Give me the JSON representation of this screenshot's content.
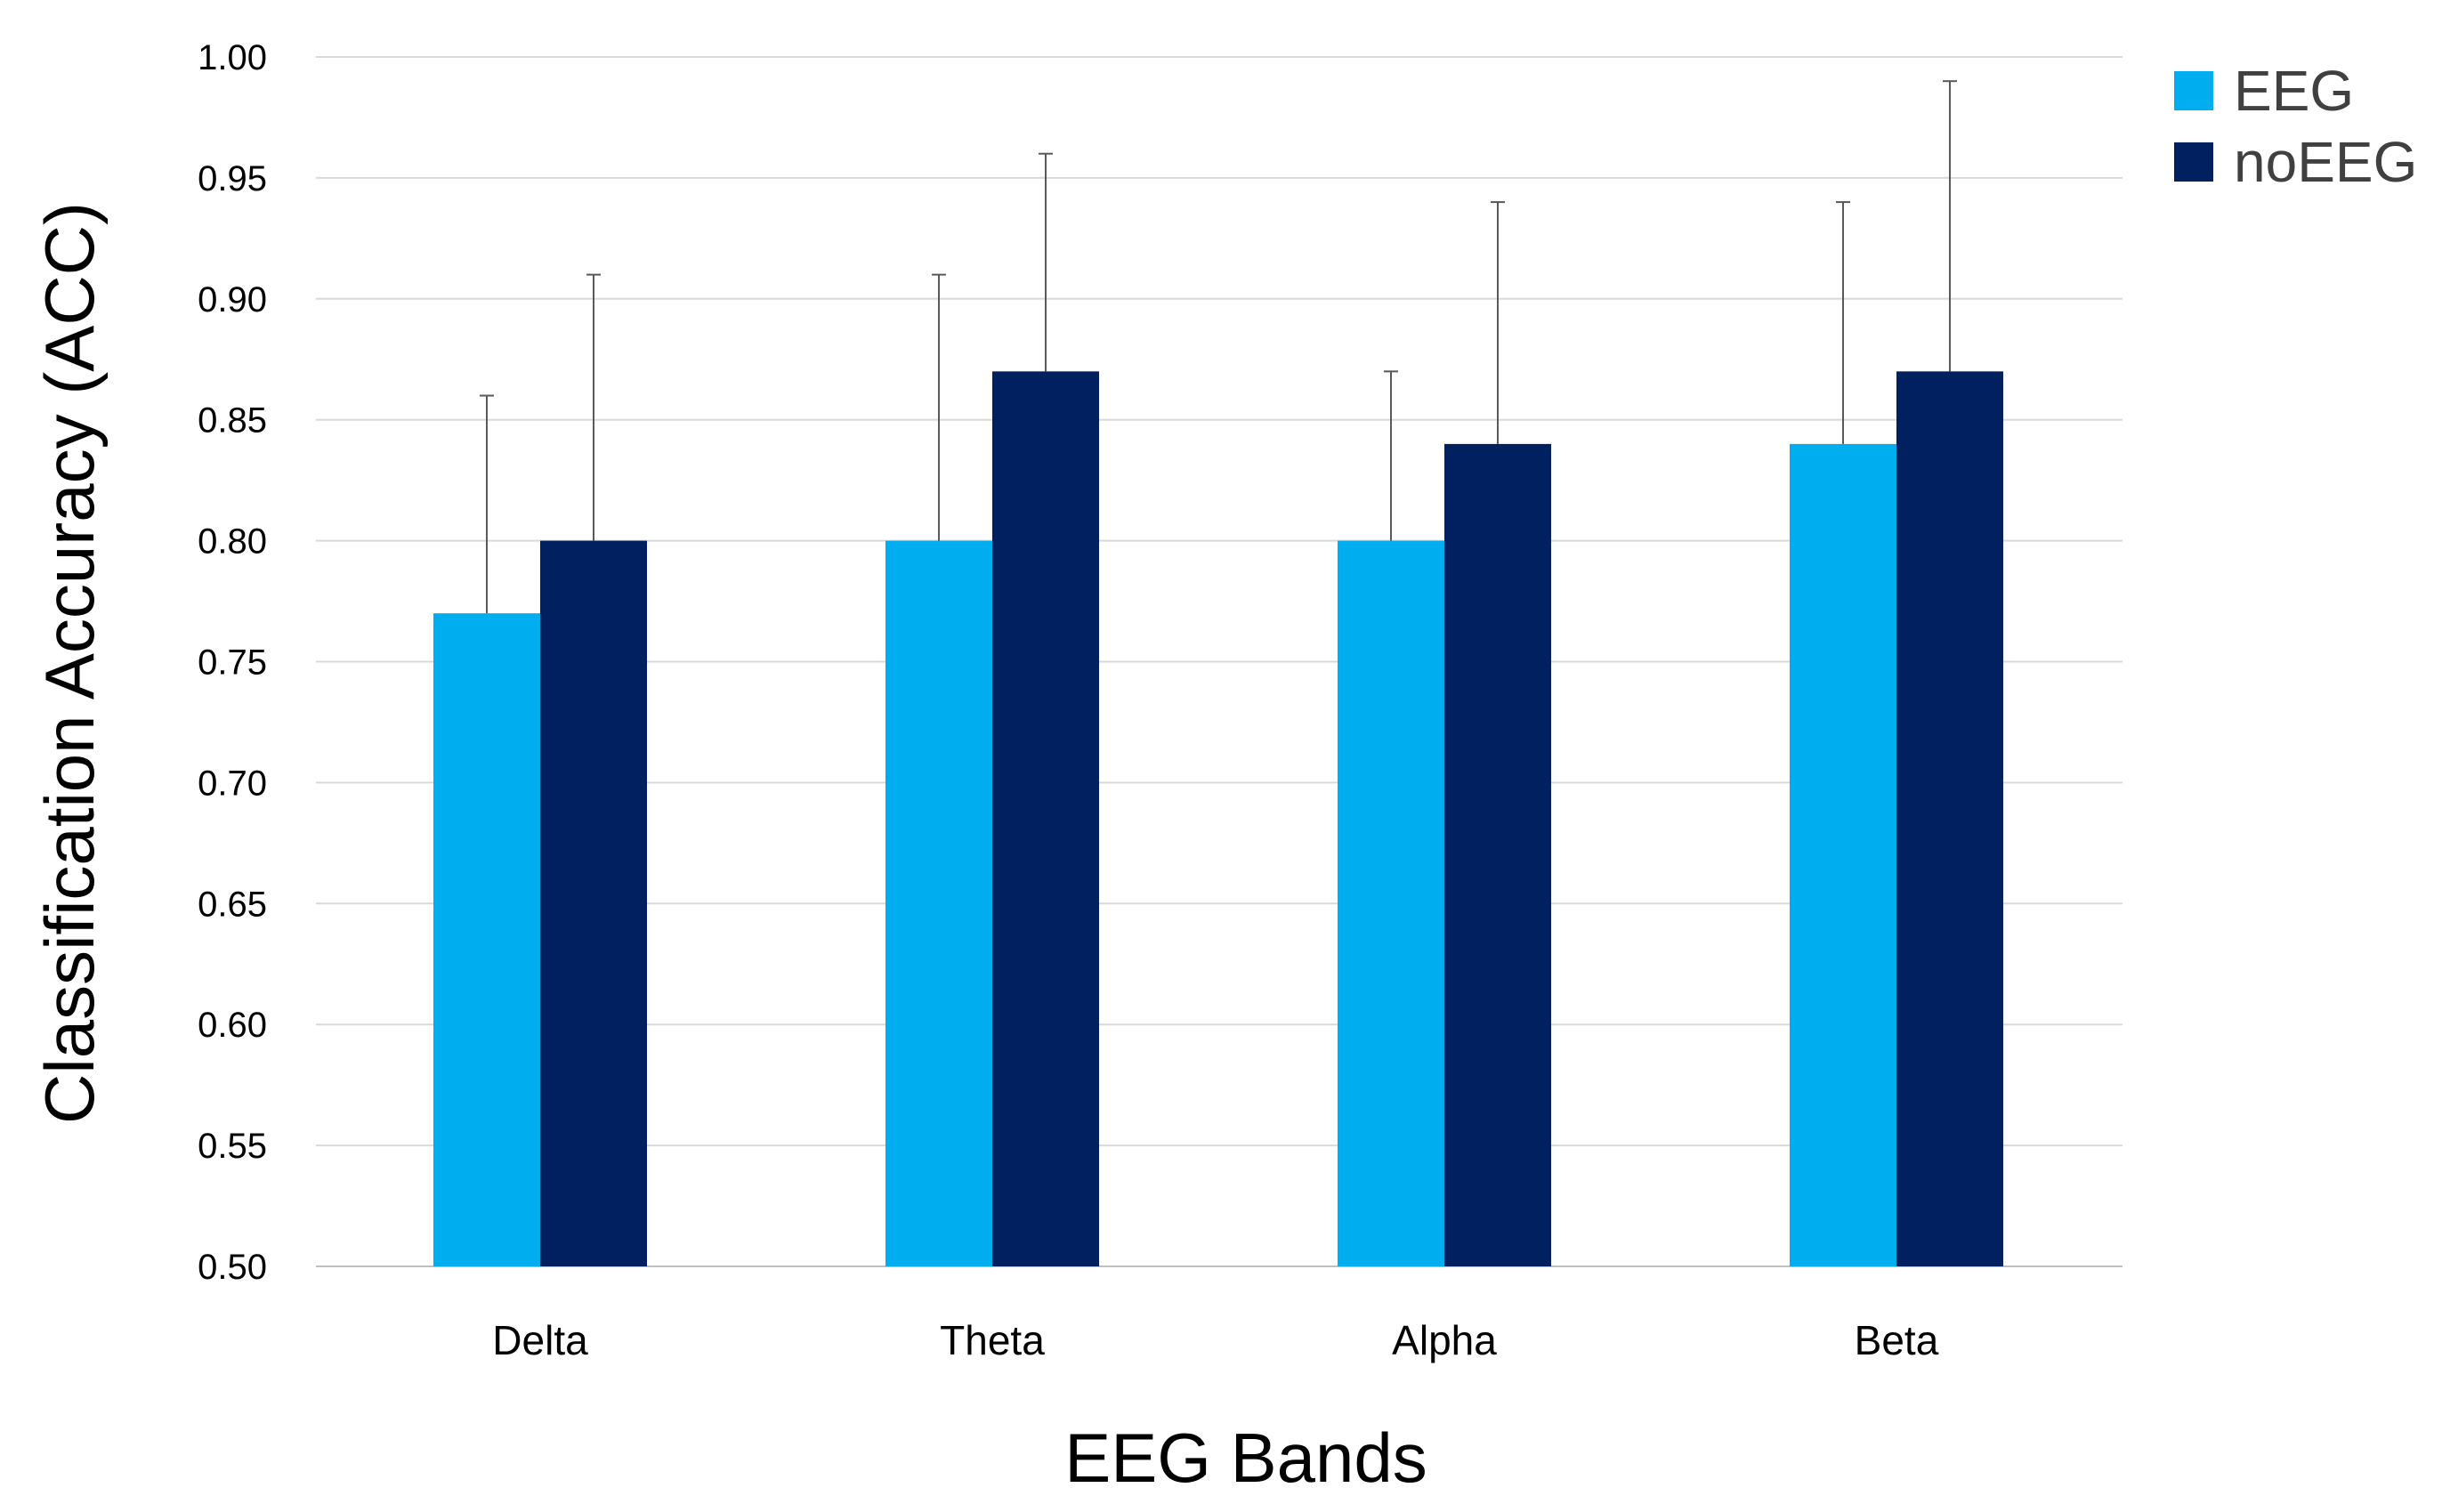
{
  "chart_data": {
    "type": "bar",
    "title": "",
    "xlabel": "EEG Bands",
    "ylabel": "Classification Accuracy (ACC)",
    "categories": [
      "Delta",
      "Theta",
      "Alpha",
      "Beta"
    ],
    "ylim": [
      0.5,
      1.0
    ],
    "yticks": [
      "0.50",
      "0.55",
      "0.60",
      "0.65",
      "0.70",
      "0.75",
      "0.80",
      "0.85",
      "0.90",
      "0.95",
      "1.00"
    ],
    "grid": true,
    "legend_position": "top-right",
    "series": [
      {
        "name": "EEG",
        "color": "#00AEEF",
        "values": [
          0.77,
          0.8,
          0.8,
          0.84
        ],
        "error_upper": [
          0.86,
          0.91,
          0.87,
          0.94
        ]
      },
      {
        "name": "noEEG",
        "color": "#002060",
        "values": [
          0.8,
          0.87,
          0.84,
          0.87
        ],
        "error_upper": [
          0.91,
          0.96,
          0.94,
          0.99
        ]
      }
    ]
  }
}
